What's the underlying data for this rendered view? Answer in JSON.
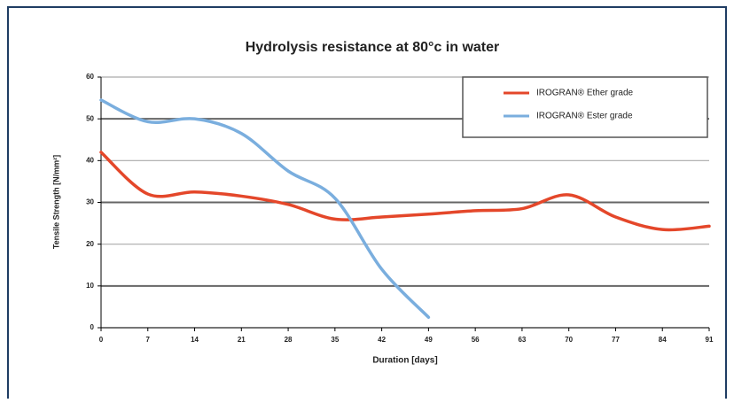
{
  "chart_data": {
    "type": "line",
    "title": "Hydrolysis resistance at 80°c in water",
    "xlabel": "Duration [days]",
    "ylabel": "Tensile Strength [N/mm²]",
    "x": [
      0,
      7,
      14,
      21,
      28,
      35,
      42,
      49,
      56,
      63,
      70,
      77,
      84,
      91
    ],
    "series": [
      {
        "name": "IROGRAN® Ether grade",
        "color": "#e4472a",
        "values": [
          42,
          32,
          32.5,
          31.5,
          29.5,
          26,
          26.5,
          27.2,
          28,
          28.5,
          31.8,
          26.5,
          23.5,
          24.3
        ]
      },
      {
        "name": "IROGRAN® Ester grade",
        "color": "#7aaede",
        "values": [
          54.5,
          49.3,
          50,
          46.5,
          37.5,
          31,
          14,
          2.5,
          null,
          null,
          null,
          null,
          null,
          null
        ]
      }
    ],
    "xlim": [
      0,
      91
    ],
    "xticks": [
      0,
      7,
      14,
      21,
      28,
      35,
      42,
      49,
      56,
      63,
      70,
      77,
      84,
      91
    ],
    "ylim": [
      0,
      60
    ],
    "yticks": [
      0,
      10,
      20,
      30,
      40,
      50,
      60
    ],
    "grid": true,
    "legend": "upper right"
  }
}
